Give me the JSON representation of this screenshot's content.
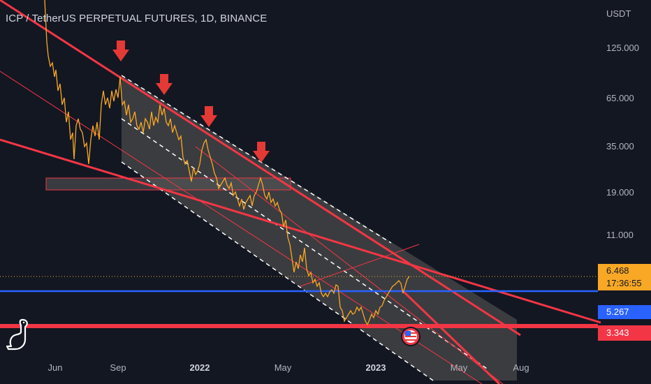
{
  "header": {
    "title": "ICP / TetherUS PERPETUAL FUTURES, 1D, BINANCE"
  },
  "price_axis": {
    "currency": "USDT",
    "ticks": [
      "125.000",
      "65.000",
      "35.000",
      "19.000",
      "11.000"
    ]
  },
  "time_axis": {
    "ticks": [
      "Jun",
      "Sep",
      "2022",
      "May",
      "2023",
      "May",
      "Aug"
    ]
  },
  "price_labels": {
    "last_price": "6.468",
    "countdown": "17:36:55",
    "blue_level": "5.267",
    "red_level": "3.343"
  },
  "colors": {
    "background": "#131722",
    "price_line": "#f9a825",
    "trendline": "#f23645",
    "support_blue": "#2962ff",
    "channel_fill": "#4a4a4a",
    "arrow": "#e53935"
  },
  "icons": {
    "logo": "tradingview-dino-icon",
    "flag": "us-flag-icon",
    "arrows": "down-arrow-icon"
  },
  "annotations": {
    "arrow_count": 4
  }
}
